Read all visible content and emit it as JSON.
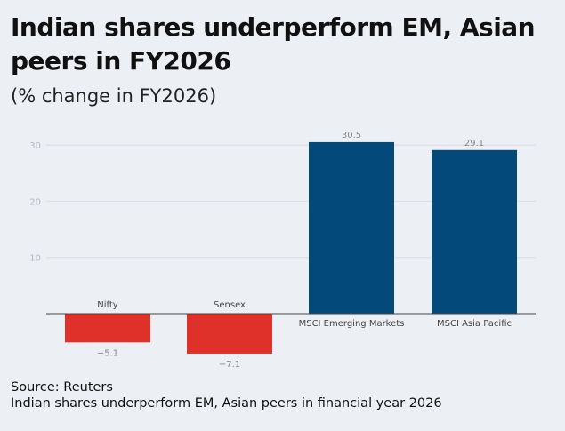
{
  "chart_data": {
    "type": "bar",
    "title": "Indian shares underperform EM, Asian peers in FY2026",
    "subtitle": "(% change in FY2026)",
    "categories": [
      "Nifty",
      "Sensex",
      "MSCI Emerging Markets",
      "MSCI Asia Pacific"
    ],
    "values": [
      -5.1,
      -7.1,
      30.5,
      29.1
    ],
    "value_labels": [
      "−5.1",
      "−7.1",
      "30.5",
      "29.1"
    ],
    "yticks": [
      10,
      20,
      30
    ],
    "ylim": [
      -8,
      30
    ],
    "grid": true,
    "colors": {
      "negative": "#e0302a",
      "positive": "#034a7a",
      "background": "#eceff4"
    }
  },
  "footer": {
    "source": "Source: Reuters",
    "caption": "Indian shares underperform EM, Asian peers in financial year 2026"
  }
}
